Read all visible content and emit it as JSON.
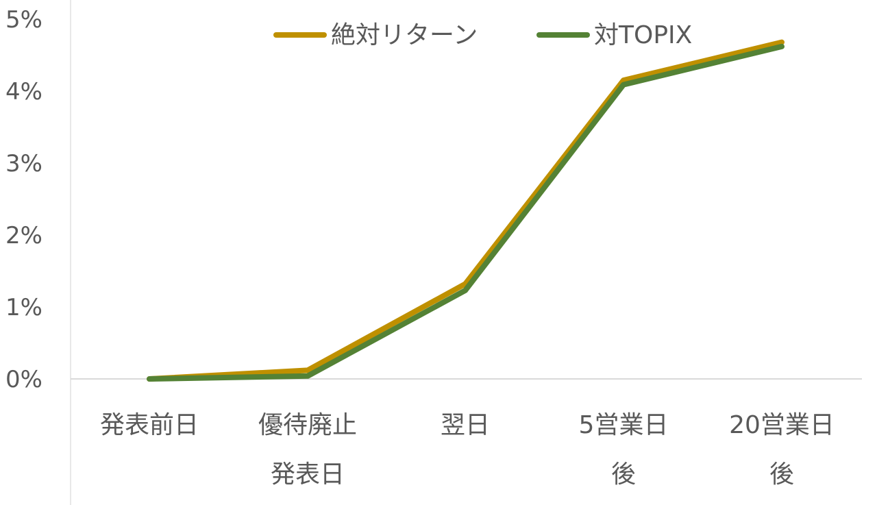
{
  "chart_data": {
    "type": "line",
    "categories": [
      [
        "発表前日"
      ],
      [
        "優待廃止",
        "発表日"
      ],
      [
        "翌日"
      ],
      [
        "5営業日",
        "後"
      ],
      [
        "20営業日",
        "後"
      ]
    ],
    "series": [
      {
        "name": "絶対リターン",
        "color": "#BF9000",
        "values": [
          0.0,
          0.12,
          1.32,
          4.15,
          4.68
        ]
      },
      {
        "name": "対TOPIX",
        "color": "#548235",
        "values": [
          0.0,
          0.04,
          1.23,
          4.09,
          4.62
        ]
      }
    ],
    "y_ticks": [
      "0%",
      "1%",
      "2%",
      "3%",
      "4%",
      "5%"
    ],
    "ylim": [
      0,
      5
    ],
    "grid": false,
    "legend": "top-center"
  }
}
